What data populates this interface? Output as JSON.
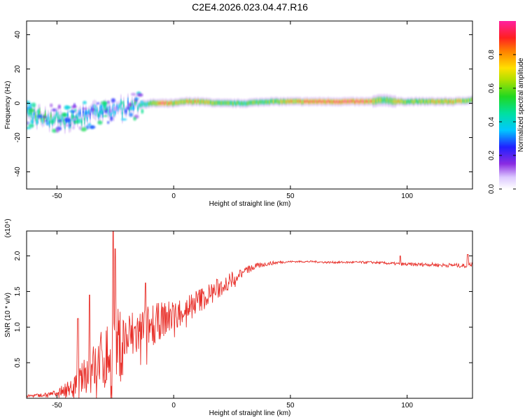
{
  "title": "C2E4.2026.023.04.47.R16",
  "colors": {
    "snr_line": "#e8302a",
    "axis": "#000000",
    "background": "#ffffff"
  },
  "chart_data": [
    {
      "type": "heatmap",
      "xlabel": "Height of straight line (km)",
      "ylabel": "Frequency (Hz)",
      "xlim": [
        -63,
        128
      ],
      "ylim": [
        -50,
        48
      ],
      "xticks": [
        -50,
        0,
        50,
        100
      ],
      "yticks": [
        -40,
        -20,
        0,
        20,
        40
      ],
      "grid": false,
      "colorbar": {
        "label": "Normalized spectral amplitude",
        "range": [
          0,
          1
        ],
        "ticks": [
          "0.0",
          "0.2",
          "0.4",
          "0.6",
          "0.8"
        ]
      },
      "ridge": {
        "x": [
          -63,
          -55,
          -50,
          -45,
          -40,
          -35,
          -30,
          -25,
          -20,
          -15,
          -10,
          -5,
          0,
          5,
          10,
          20,
          30,
          40,
          50,
          60,
          70,
          80,
          85,
          90,
          95,
          100,
          110,
          120,
          128
        ],
        "frequency": [
          -7,
          -8,
          -9,
          -10,
          -8,
          -6,
          -5,
          -4,
          -2,
          -1,
          0,
          0,
          0,
          1,
          1,
          0,
          0,
          1,
          1,
          1,
          1,
          1,
          1,
          2,
          1,
          1,
          1,
          1,
          2
        ],
        "amplitude": [
          0.45,
          0.5,
          0.45,
          0.4,
          0.4,
          0.35,
          0.35,
          0.35,
          0.4,
          0.45,
          0.55,
          0.9,
          0.7,
          0.75,
          0.8,
          0.6,
          0.55,
          0.6,
          0.75,
          0.9,
          0.95,
          0.95,
          0.8,
          0.55,
          0.75,
          0.6,
          0.7,
          0.8,
          0.6
        ]
      }
    },
    {
      "type": "line",
      "xlabel": "Height of straight line (km)",
      "ylabel": "SNR (10 * v/v)",
      "y_multiplier": "(x10⁴)",
      "xlim": [
        -63,
        128
      ],
      "ylim": [
        0,
        2.35
      ],
      "xticks": [
        -50,
        0,
        50,
        100
      ],
      "yticks": [
        "0.5",
        "1.0",
        "1.5",
        "2.0"
      ],
      "grid": false,
      "series": [
        {
          "trend_x": [
            -63,
            -55,
            -50,
            -45,
            -40,
            -35,
            -30,
            -25,
            -20,
            -15,
            -10,
            -5,
            0,
            5,
            10,
            15,
            20,
            25,
            30,
            35,
            40,
            45,
            50,
            55,
            60,
            65,
            70,
            75,
            80,
            85,
            90,
            95,
            100,
            105,
            110,
            115,
            120,
            125,
            128
          ],
          "trend_y": [
            0.03,
            0.05,
            0.08,
            0.14,
            0.25,
            0.4,
            0.55,
            0.7,
            0.82,
            0.93,
            1.02,
            1.1,
            1.18,
            1.26,
            1.36,
            1.45,
            1.56,
            1.68,
            1.78,
            1.85,
            1.89,
            1.91,
            1.92,
            1.92,
            1.92,
            1.91,
            1.91,
            1.91,
            1.91,
            1.91,
            1.9,
            1.89,
            1.88,
            1.88,
            1.88,
            1.87,
            1.87,
            1.86,
            1.89
          ],
          "noise_x": [
            -63,
            -50,
            -40,
            -30,
            -25,
            -20,
            -10,
            0,
            10,
            20,
            30,
            40,
            50,
            90,
            100,
            128
          ],
          "noise_amp": [
            0.03,
            0.06,
            0.35,
            0.8,
            1.0,
            0.7,
            0.5,
            0.35,
            0.3,
            0.25,
            0.1,
            0.05,
            0.02,
            0.03,
            0.04,
            0.05
          ],
          "peaks": [
            {
              "x": -41,
              "y": 1.12
            },
            {
              "x": -36,
              "y": 1.45
            },
            {
              "x": -26,
              "y": 2.35
            },
            {
              "x": -25,
              "y": 2.1
            },
            {
              "x": -12,
              "y": 1.62
            },
            {
              "x": 97,
              "y": 2.0
            },
            {
              "x": 126,
              "y": 2.02
            }
          ]
        }
      ]
    }
  ]
}
